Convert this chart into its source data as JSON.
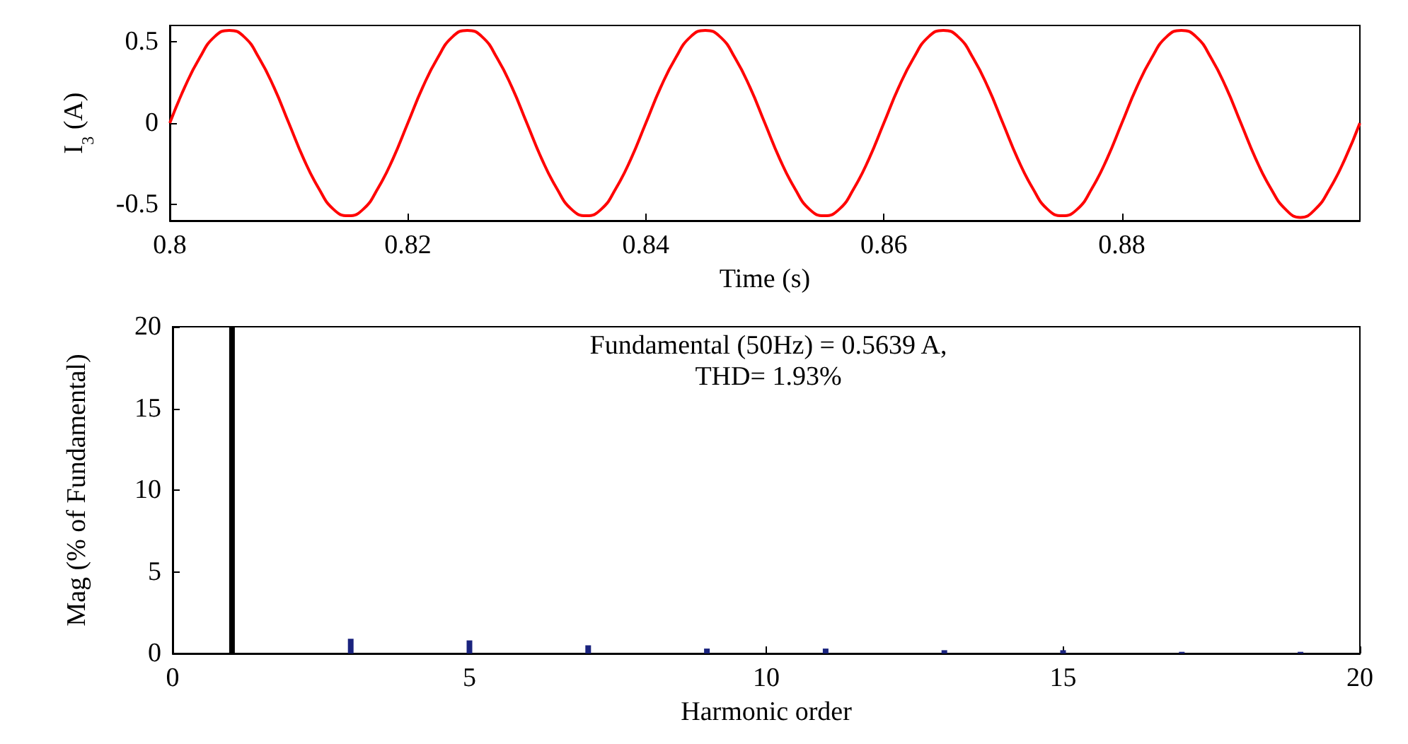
{
  "chart_data": [
    {
      "type": "line",
      "xlabel": "Time (s)",
      "ylabel": "I$_{3}$ (A)",
      "series": [
        {
          "color": "#ff0000",
          "x": [
            0.8,
            0.80125,
            0.8025,
            0.80375,
            0.805,
            0.80625,
            0.8075,
            0.80875,
            0.81,
            0.81125,
            0.8125,
            0.81375,
            0.815,
            0.81625,
            0.8175,
            0.81875,
            0.82,
            0.82125,
            0.8225,
            0.82375,
            0.825,
            0.82625,
            0.8275,
            0.82875,
            0.83,
            0.83125,
            0.8325,
            0.83375,
            0.835,
            0.83625,
            0.8375,
            0.83875,
            0.84,
            0.84125,
            0.8425,
            0.84375,
            0.845,
            0.84625,
            0.8475,
            0.84875,
            0.85,
            0.85125,
            0.8525,
            0.85375,
            0.855,
            0.85625,
            0.8575,
            0.85875,
            0.86,
            0.86125,
            0.8625,
            0.86375,
            0.865,
            0.86625,
            0.8675,
            0.86875,
            0.87,
            0.87125,
            0.8725,
            0.87375,
            0.875,
            0.87625,
            0.8775,
            0.87875,
            0.88,
            0.88125,
            0.8825,
            0.88375,
            0.885,
            0.88625,
            0.8875,
            0.88875,
            0.89,
            0.89125,
            0.8925,
            0.89375,
            0.895,
            0.89625,
            0.8975,
            0.89875,
            0.9
          ],
          "values": [
            0,
            0.22,
            0.4,
            0.53,
            0.57,
            0.53,
            0.4,
            0.22,
            0,
            -0.22,
            -0.4,
            -0.53,
            -0.57,
            -0.53,
            -0.4,
            -0.22,
            0,
            0.22,
            0.4,
            0.53,
            0.57,
            0.53,
            0.4,
            0.22,
            0,
            -0.22,
            -0.4,
            -0.53,
            -0.57,
            -0.53,
            -0.4,
            -0.22,
            0,
            0.22,
            0.4,
            0.53,
            0.57,
            0.53,
            0.4,
            0.22,
            0,
            -0.22,
            -0.4,
            -0.53,
            -0.57,
            -0.53,
            -0.4,
            -0.22,
            0,
            0.22,
            0.4,
            0.53,
            0.57,
            0.53,
            0.4,
            0.22,
            0,
            -0.22,
            -0.4,
            -0.53,
            -0.57,
            -0.53,
            -0.4,
            -0.22,
            0,
            0.22,
            0.4,
            0.53,
            0.57,
            0.53,
            0.4,
            0.22,
            0,
            -0.22,
            -0.4,
            -0.53,
            -0.58,
            -0.53,
            -0.4,
            -0.22,
            0
          ]
        }
      ],
      "xlim": [
        0.8,
        0.9
      ],
      "xticks": [
        0.8,
        0.82,
        0.84,
        0.86,
        0.88
      ],
      "ylim": [
        -0.6,
        0.6
      ],
      "yticks": [
        -0.5,
        0,
        0.5
      ],
      "marker": "none",
      "line_style": "solid"
    },
    {
      "type": "bar",
      "xlabel": "Harmonic order",
      "ylabel": "Mag (% of Fundamental)",
      "annotations": [
        "Fundamental (50Hz) = 0.5639 A,",
        "THD= 1.93%"
      ],
      "x": [
        1,
        3,
        5,
        7,
        9,
        11,
        13,
        15,
        17,
        19
      ],
      "values": [
        20,
        0.9,
        0.8,
        0.5,
        0.3,
        0.3,
        0.2,
        0.2,
        0.1,
        0.1
      ],
      "colors": [
        "#000000",
        "#1a237e",
        "#1a237e",
        "#1a237e",
        "#1a237e",
        "#1a237e",
        "#1a237e",
        "#1a237e",
        "#1a237e",
        "#1a237e"
      ],
      "xlim": [
        0,
        20
      ],
      "xticks": [
        0,
        5,
        10,
        15,
        20
      ],
      "ylim": [
        0,
        20
      ],
      "yticks": [
        0,
        5,
        10,
        15,
        20
      ]
    }
  ]
}
